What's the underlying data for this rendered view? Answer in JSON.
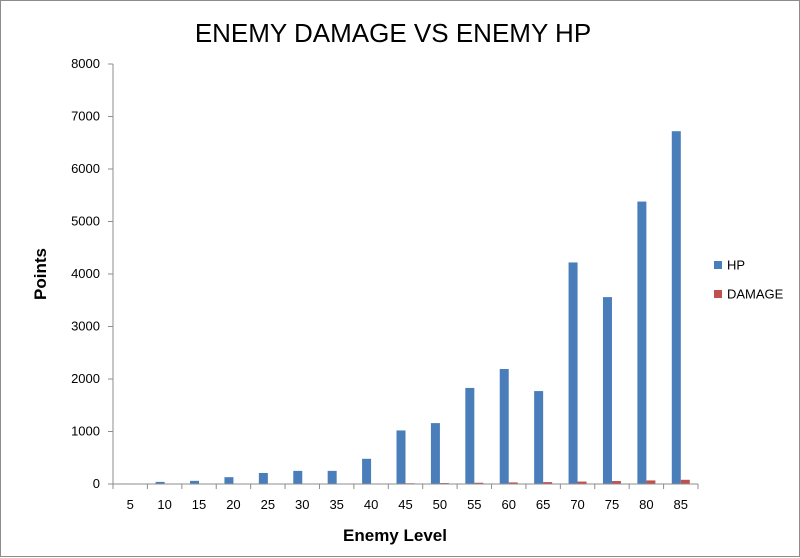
{
  "chart_data": {
    "type": "bar",
    "title": "ENEMY DAMAGE VS ENEMY HP",
    "xlabel": "Enemy Level",
    "ylabel": "Points",
    "ylim": [
      0,
      8000
    ],
    "yticks": [
      0,
      1000,
      2000,
      3000,
      4000,
      5000,
      6000,
      7000,
      8000
    ],
    "categories": [
      "5",
      "10",
      "15",
      "20",
      "25",
      "30",
      "35",
      "40",
      "45",
      "50",
      "55",
      "60",
      "65",
      "70",
      "75",
      "80",
      "85"
    ],
    "series": [
      {
        "name": "HP",
        "color": "#4a7ebb",
        "values": [
          10,
          40,
          60,
          130,
          210,
          250,
          250,
          480,
          1020,
          1160,
          1830,
          2190,
          1770,
          4220,
          3560,
          5380,
          6720
        ]
      },
      {
        "name": "DAMAGE",
        "color": "#c0504d",
        "values": [
          1,
          2,
          3,
          4,
          5,
          6,
          7,
          10,
          14,
          18,
          24,
          30,
          36,
          46,
          56,
          68,
          80
        ]
      }
    ],
    "grid": false,
    "legend_position": "right"
  }
}
